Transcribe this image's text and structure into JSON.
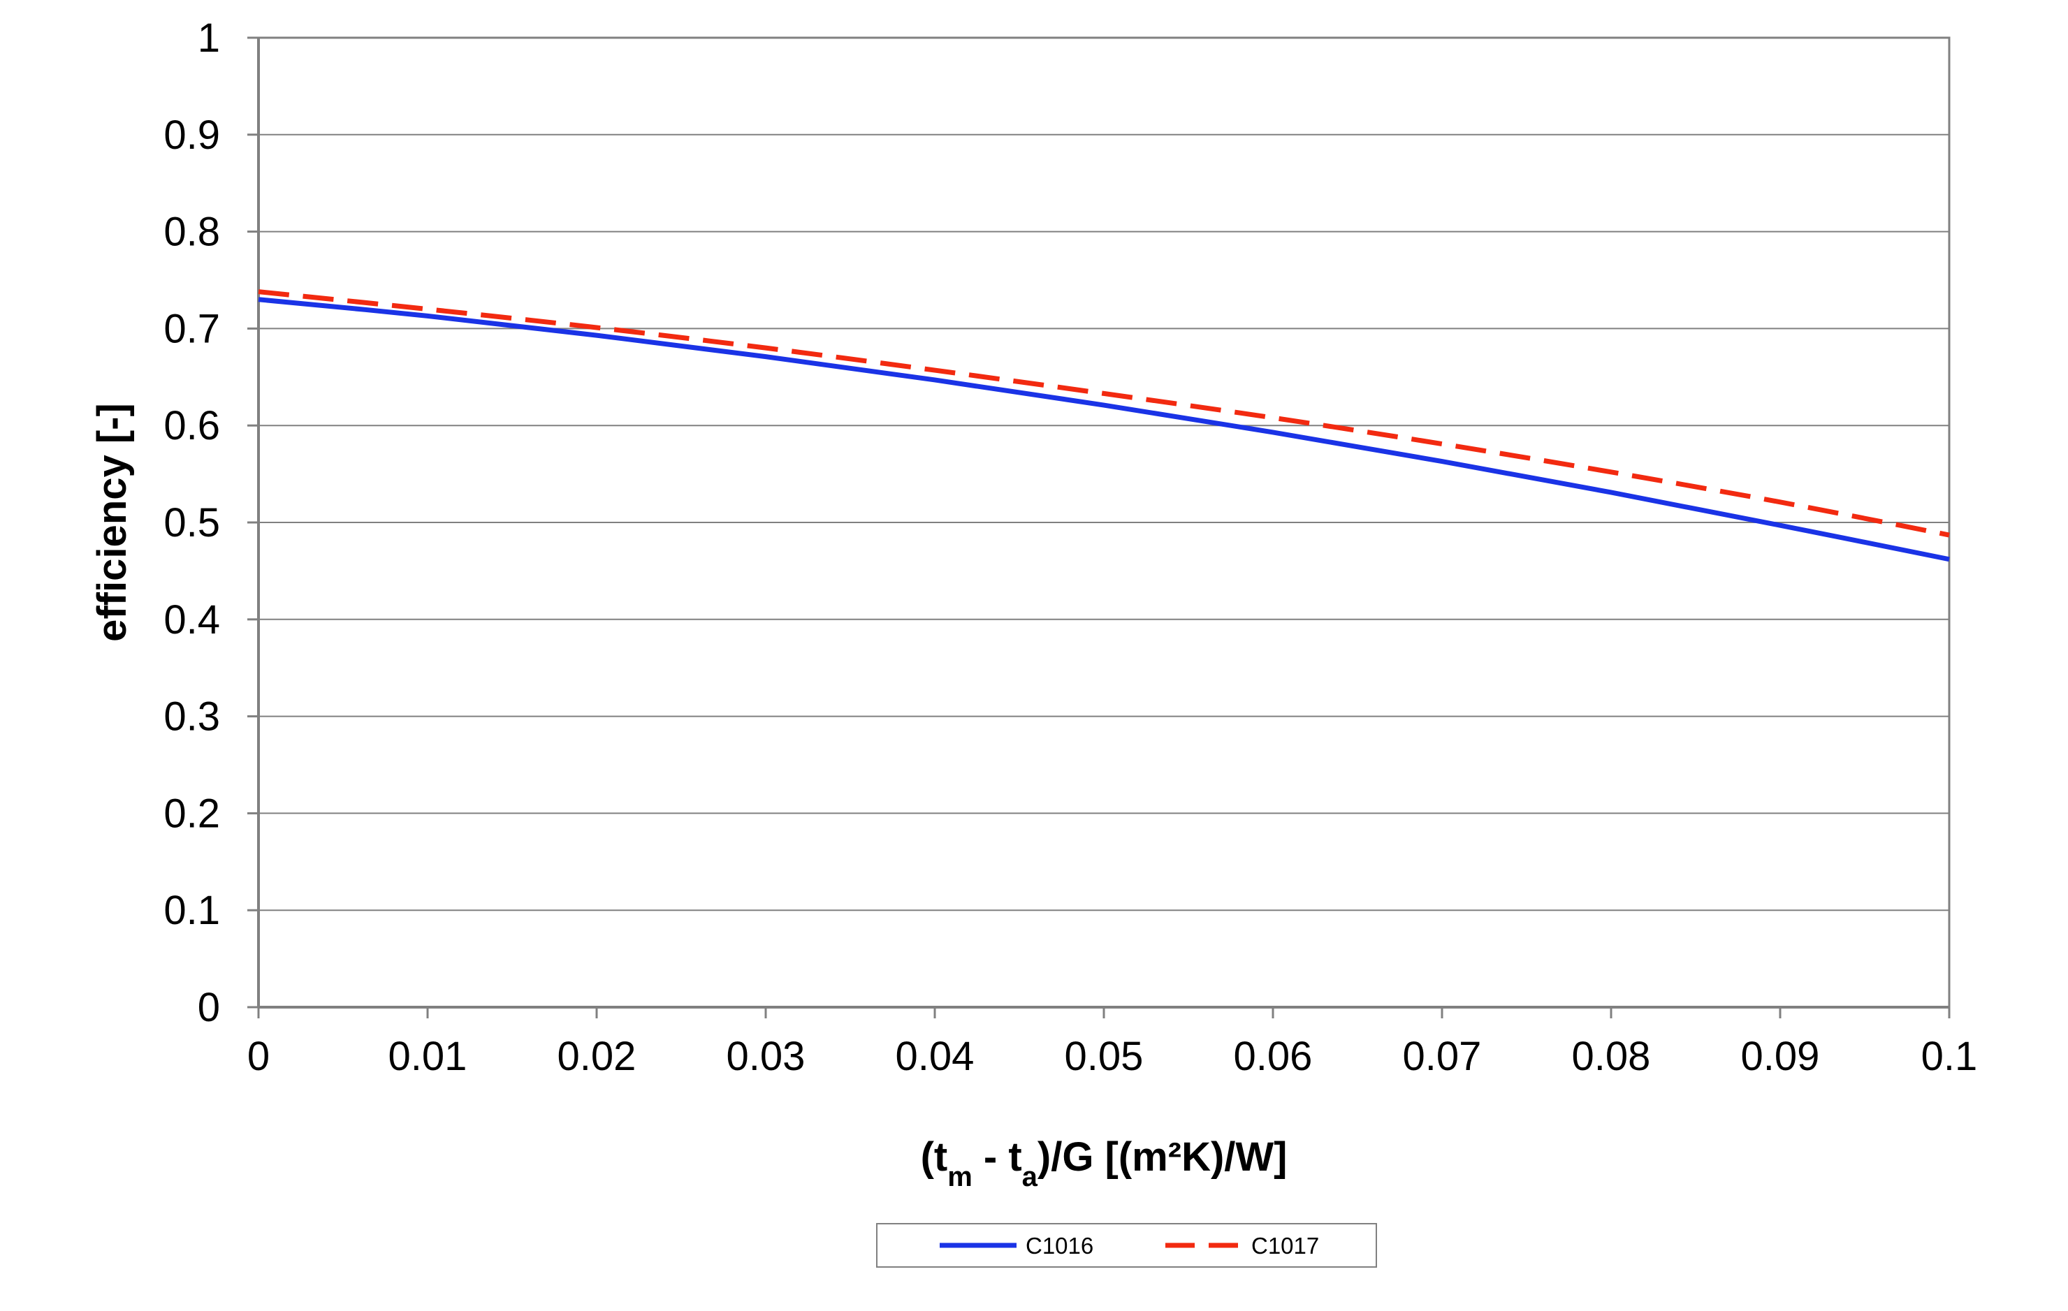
{
  "chart_data": {
    "type": "line",
    "xlabel": {
      "open": "(t",
      "sub1": "m",
      "mid": " - t",
      "sub2": "a",
      "close": ")/G [(m²K)/W]"
    },
    "ylabel": "efficiency [-]",
    "xlim": [
      0,
      0.1
    ],
    "ylim": [
      0,
      1
    ],
    "x_ticks": [
      "0",
      "0.01",
      "0.02",
      "0.03",
      "0.04",
      "0.05",
      "0.06",
      "0.07",
      "0.08",
      "0.09",
      "0.1"
    ],
    "y_ticks": [
      "0",
      "0.1",
      "0.2",
      "0.3",
      "0.4",
      "0.5",
      "0.6",
      "0.7",
      "0.8",
      "0.9",
      "1"
    ],
    "grid": "horizontal",
    "legend_position": "bottom-center",
    "x": [
      0,
      0.01,
      0.02,
      0.03,
      0.04,
      0.05,
      0.06,
      0.07,
      0.08,
      0.09,
      0.1
    ],
    "series": [
      {
        "name": "C1016",
        "color": "#1a33e6",
        "style": "solid",
        "values": [
          0.73,
          0.713,
          0.693,
          0.671,
          0.647,
          0.621,
          0.593,
          0.563,
          0.531,
          0.497,
          0.462
        ]
      },
      {
        "name": "C1017",
        "color": "#f22a10",
        "style": "dashed",
        "values": [
          0.738,
          0.72,
          0.701,
          0.68,
          0.657,
          0.633,
          0.608,
          0.581,
          0.552,
          0.521,
          0.487
        ]
      }
    ]
  }
}
